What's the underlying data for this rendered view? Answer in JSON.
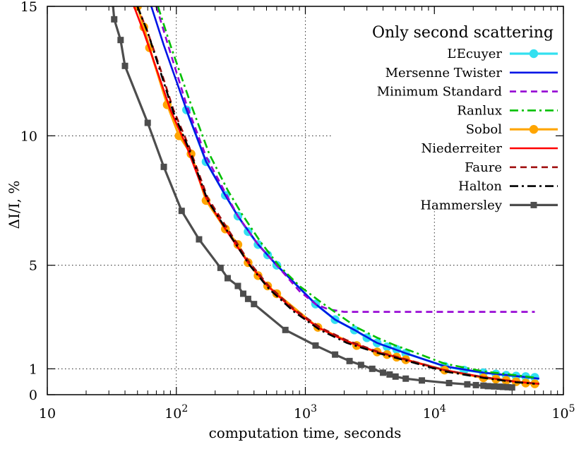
{
  "chart_data": {
    "type": "line",
    "title": "",
    "xlabel": "computation time, seconds",
    "ylabel": "ΔI/I, %",
    "xscale": "log",
    "xlim": [
      10,
      100000
    ],
    "ylim": [
      0,
      15
    ],
    "grid": true,
    "x_ticks": [
      {
        "value": 10,
        "base": "10",
        "exp": ""
      },
      {
        "value": 100,
        "base": "10",
        "exp": "2"
      },
      {
        "value": 1000,
        "base": "10",
        "exp": "3"
      },
      {
        "value": 10000,
        "base": "10",
        "exp": "4"
      },
      {
        "value": 100000,
        "base": "10",
        "exp": "5"
      }
    ],
    "y_ticks": [
      {
        "value": 0,
        "label": "0"
      },
      {
        "value": 1,
        "label": "1"
      },
      {
        "value": 5,
        "label": "5"
      },
      {
        "value": 10,
        "label": "10"
      },
      {
        "value": 15,
        "label": "15"
      }
    ],
    "legend": {
      "title": "Only second scattering",
      "position": "top-right"
    },
    "series": [
      {
        "name": "L’Ecuyer",
        "color": "#33e0f0",
        "dash": "solid",
        "marker": "circle",
        "x": [
          120,
          170,
          240,
          300,
          360,
          430,
          510,
          600,
          1200,
          1700,
          2400,
          3000,
          3600,
          4300,
          5100,
          6000,
          12000,
          17000,
          24000,
          30000,
          36000,
          43000,
          51000,
          60000
        ],
        "y": [
          11.0,
          9.0,
          7.7,
          6.9,
          6.3,
          5.8,
          5.4,
          5.0,
          3.5,
          2.9,
          2.5,
          2.2,
          2.0,
          1.85,
          1.75,
          1.6,
          1.1,
          0.95,
          0.85,
          0.8,
          0.75,
          0.72,
          0.7,
          0.67
        ]
      },
      {
        "name": "Mersenne Twister",
        "color": "#0014e6",
        "dash": "solid",
        "marker": "none",
        "x": [
          64,
          80,
          120,
          170,
          240,
          300,
          430,
          600,
          1200,
          1700,
          2400,
          3600,
          6000,
          12000,
          24000,
          43000,
          65000
        ],
        "y": [
          15.0,
          13.5,
          11.0,
          9.0,
          7.7,
          6.9,
          5.8,
          5.0,
          3.5,
          2.9,
          2.5,
          2.0,
          1.6,
          1.1,
          0.85,
          0.72,
          0.62
        ]
      },
      {
        "name": "Minimum Standard",
        "color": "#9400d3",
        "dash": "dashed",
        "marker": "none",
        "x": [
          70,
          90,
          120,
          170,
          240,
          300,
          430,
          600,
          900,
          1200,
          1500,
          2000,
          5000,
          20000,
          60000
        ],
        "y": [
          15.0,
          13.2,
          11.2,
          9.2,
          7.8,
          6.9,
          5.8,
          5.0,
          4.0,
          3.5,
          3.3,
          3.2,
          3.2,
          3.2,
          3.2
        ]
      },
      {
        "name": "Ranlux",
        "color": "#00c000",
        "dash": "dashdot",
        "marker": "none",
        "x": [
          72,
          90,
          130,
          180,
          250,
          320,
          450,
          620,
          900,
          1300,
          1800,
          2500,
          3600,
          5000,
          6500,
          12000,
          24000,
          43000,
          62000
        ],
        "y": [
          15.0,
          13.5,
          11.2,
          9.3,
          7.9,
          7.0,
          5.9,
          5.0,
          4.2,
          3.6,
          3.1,
          2.6,
          2.2,
          1.9,
          1.7,
          1.2,
          0.9,
          0.75,
          0.65
        ]
      },
      {
        "name": "Sobol",
        "color": "#ffa500",
        "dash": "solid",
        "marker": "circle",
        "x": [
          50,
          56,
          62,
          85,
          105,
          130,
          170,
          240,
          300,
          360,
          430,
          510,
          600,
          1250,
          2500,
          3600,
          4300,
          5100,
          6000,
          12000,
          24000,
          30000,
          36000,
          43000,
          51000,
          60000
        ],
        "y": [
          15.0,
          14.2,
          13.4,
          11.2,
          10.0,
          9.3,
          7.5,
          6.4,
          5.8,
          5.1,
          4.6,
          4.2,
          3.9,
          2.6,
          1.9,
          1.65,
          1.55,
          1.45,
          1.35,
          0.95,
          0.65,
          0.6,
          0.55,
          0.5,
          0.45,
          0.42
        ]
      },
      {
        "name": "Niederreiter",
        "color": "#ff0000",
        "dash": "solid",
        "marker": "none",
        "x": [
          47,
          56,
          70,
          90,
          120,
          170,
          240,
          360,
          510,
          800,
          1250,
          2000,
          3600,
          6000,
          12000,
          24000,
          43000,
          65000
        ],
        "y": [
          15.0,
          14.0,
          12.6,
          11.0,
          9.6,
          7.6,
          6.4,
          5.1,
          4.2,
          3.3,
          2.6,
          2.1,
          1.65,
          1.35,
          0.95,
          0.68,
          0.5,
          0.42
        ]
      },
      {
        "name": "Faure",
        "color": "#a01010",
        "dash": "dashed",
        "marker": "none",
        "x": [
          50,
          60,
          75,
          95,
          125,
          175,
          250,
          370,
          520,
          820,
          1300,
          2100,
          3700,
          6200,
          12000,
          24000,
          43000,
          65000
        ],
        "y": [
          15.0,
          14.0,
          12.6,
          11.0,
          9.6,
          7.6,
          6.4,
          5.1,
          4.2,
          3.3,
          2.6,
          2.1,
          1.65,
          1.35,
          0.95,
          0.68,
          0.5,
          0.42
        ]
      },
      {
        "name": "Halton",
        "color": "#000000",
        "dash": "dashdot",
        "marker": "none",
        "x": [
          50,
          60,
          75,
          95,
          125,
          175,
          250,
          370,
          520,
          820,
          1300,
          2100,
          3700,
          6200,
          12000,
          24000,
          43000,
          60000
        ],
        "y": [
          15.0,
          14.0,
          12.5,
          10.9,
          9.5,
          7.5,
          6.3,
          5.0,
          4.1,
          3.2,
          2.5,
          2.0,
          1.6,
          1.3,
          0.9,
          0.65,
          0.48,
          0.42
        ]
      },
      {
        "name": "Hammersley",
        "color": "#4d4d4d",
        "dash": "solid",
        "marker": "square",
        "x": [
          31,
          33,
          37,
          40,
          60,
          80,
          110,
          150,
          220,
          250,
          300,
          330,
          360,
          400,
          700,
          1200,
          1700,
          2200,
          2700,
          3300,
          4000,
          4500,
          5000,
          6000,
          8000,
          13000,
          18000,
          21000,
          24000,
          26000,
          29000,
          32000,
          34000,
          37000,
          40000
        ],
        "y": [
          16.0,
          14.5,
          13.7,
          12.7,
          10.5,
          8.8,
          7.1,
          6.0,
          4.9,
          4.5,
          4.2,
          3.9,
          3.7,
          3.5,
          2.5,
          1.9,
          1.55,
          1.3,
          1.15,
          1.0,
          0.85,
          0.78,
          0.7,
          0.62,
          0.55,
          0.45,
          0.4,
          0.37,
          0.35,
          0.33,
          0.32,
          0.31,
          0.3,
          0.29,
          0.28
        ]
      }
    ]
  }
}
